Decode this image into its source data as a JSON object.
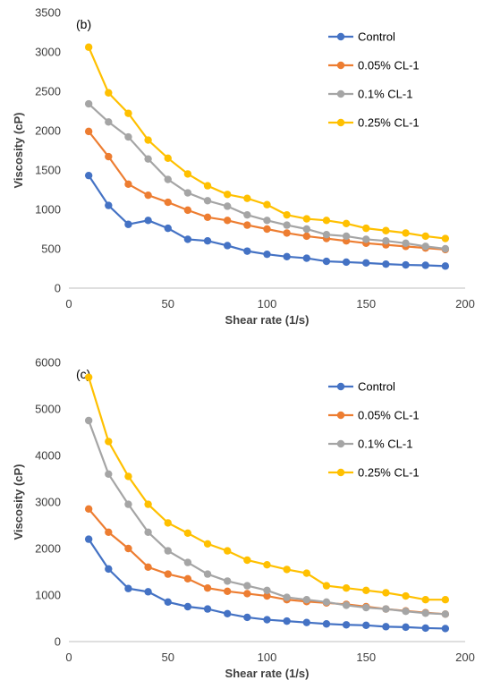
{
  "chart_data": [
    {
      "type": "line",
      "panel_label": "(b)",
      "xlabel": "Shear rate (1/s)",
      "ylabel": "Viscosity (cP)",
      "xlim": [
        0,
        200
      ],
      "ylim": [
        0,
        3500
      ],
      "xticks": [
        0,
        50,
        100,
        150,
        200
      ],
      "yticks": [
        0,
        500,
        1000,
        1500,
        2000,
        2500,
        3000,
        3500
      ],
      "grid": false,
      "legend_position": "top-right",
      "x": [
        10,
        20,
        30,
        40,
        50,
        60,
        70,
        80,
        90,
        100,
        110,
        120,
        130,
        140,
        150,
        160,
        170,
        180,
        190
      ],
      "series": [
        {
          "name": "Control",
          "color": "#4472C4",
          "values": [
            1430,
            1050,
            810,
            860,
            760,
            620,
            600,
            540,
            470,
            430,
            400,
            380,
            340,
            330,
            320,
            305,
            295,
            290,
            280
          ]
        },
        {
          "name": "0.05% CL-1",
          "color": "#ED7D31",
          "values": [
            1990,
            1670,
            1320,
            1180,
            1090,
            990,
            900,
            860,
            800,
            750,
            700,
            660,
            630,
            600,
            570,
            550,
            530,
            510,
            490
          ]
        },
        {
          "name": "0.1% CL-1",
          "color": "#A5A5A5",
          "values": [
            2340,
            2110,
            1920,
            1640,
            1380,
            1210,
            1110,
            1040,
            930,
            860,
            800,
            750,
            680,
            660,
            620,
            600,
            570,
            530,
            500
          ]
        },
        {
          "name": "0.25% CL-1",
          "color": "#FFC000",
          "values": [
            3060,
            2480,
            2220,
            1880,
            1650,
            1450,
            1300,
            1190,
            1140,
            1060,
            930,
            880,
            860,
            820,
            760,
            730,
            700,
            660,
            630
          ]
        }
      ]
    },
    {
      "type": "line",
      "panel_label": "(c)",
      "xlabel": "Shear rate (1/s)",
      "ylabel": "Viscosity (cP)",
      "xlim": [
        0,
        200
      ],
      "ylim": [
        0,
        6000
      ],
      "xticks": [
        0,
        50,
        100,
        150,
        200
      ],
      "yticks": [
        0,
        1000,
        2000,
        3000,
        4000,
        5000,
        6000
      ],
      "grid": false,
      "legend_position": "top-right",
      "x": [
        10,
        20,
        30,
        40,
        50,
        60,
        70,
        80,
        90,
        100,
        110,
        120,
        130,
        140,
        150,
        160,
        170,
        180,
        190
      ],
      "series": [
        {
          "name": "Control",
          "color": "#4472C4",
          "values": [
            2200,
            1560,
            1140,
            1070,
            850,
            750,
            700,
            600,
            520,
            470,
            440,
            410,
            380,
            360,
            350,
            320,
            310,
            290,
            280
          ]
        },
        {
          "name": "0.05% CL-1",
          "color": "#ED7D31",
          "values": [
            2850,
            2350,
            2000,
            1600,
            1450,
            1350,
            1150,
            1080,
            1030,
            980,
            900,
            860,
            830,
            800,
            750,
            700,
            660,
            620,
            590
          ]
        },
        {
          "name": "0.1% CL-1",
          "color": "#A5A5A5",
          "values": [
            4750,
            3600,
            2950,
            2350,
            1950,
            1700,
            1450,
            1300,
            1200,
            1100,
            950,
            900,
            850,
            780,
            730,
            700,
            650,
            610,
            590
          ]
        },
        {
          "name": "0.25% CL-1",
          "color": "#FFC000",
          "values": [
            5680,
            4300,
            3550,
            2950,
            2550,
            2330,
            2100,
            1950,
            1750,
            1650,
            1550,
            1470,
            1200,
            1150,
            1100,
            1050,
            980,
            900,
            900
          ]
        }
      ]
    }
  ]
}
